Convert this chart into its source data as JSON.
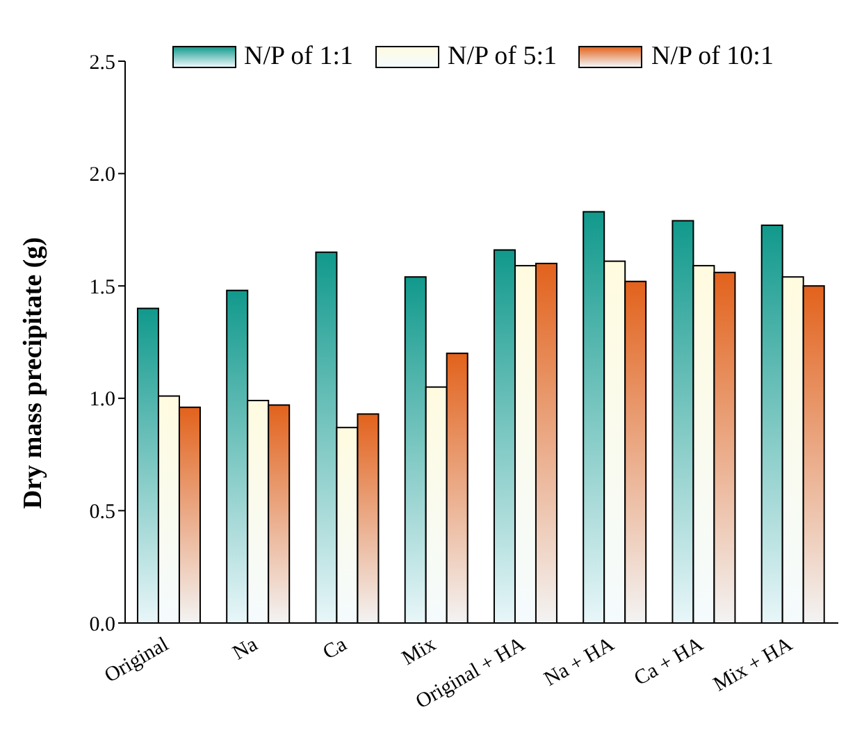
{
  "chart_data": {
    "type": "bar",
    "ylabel": "Dry mass precipitate (g)",
    "categories": [
      "Original",
      "Na",
      "Ca",
      "Mix",
      "Original + HA",
      "Na + HA",
      "Ca + HA",
      "Mix + HA"
    ],
    "series": [
      {
        "name": "N/P of 1:1",
        "color": "#11998c",
        "values": [
          1.4,
          1.48,
          1.65,
          1.54,
          1.66,
          1.83,
          1.79,
          1.77
        ]
      },
      {
        "name": "N/P of 5:1",
        "color": "#fffbe0",
        "values": [
          1.01,
          0.99,
          0.87,
          1.05,
          1.59,
          1.61,
          1.59,
          1.54
        ]
      },
      {
        "name": "N/P of 10:1",
        "color": "#e2621c",
        "values": [
          0.96,
          0.97,
          0.93,
          1.2,
          1.6,
          1.52,
          1.56,
          1.5
        ]
      }
    ],
    "ylim": [
      0,
      2.5
    ],
    "yticks": [
      {
        "value": 0,
        "label": "0.0"
      },
      {
        "value": 0.5,
        "label": "0.5"
      },
      {
        "value": 1,
        "label": "1.0"
      },
      {
        "value": 1.5,
        "label": "1.5"
      },
      {
        "value": 2,
        "label": "2.0"
      },
      {
        "value": 2.5,
        "label": "2.5"
      }
    ],
    "grid": false,
    "legend": "top"
  }
}
